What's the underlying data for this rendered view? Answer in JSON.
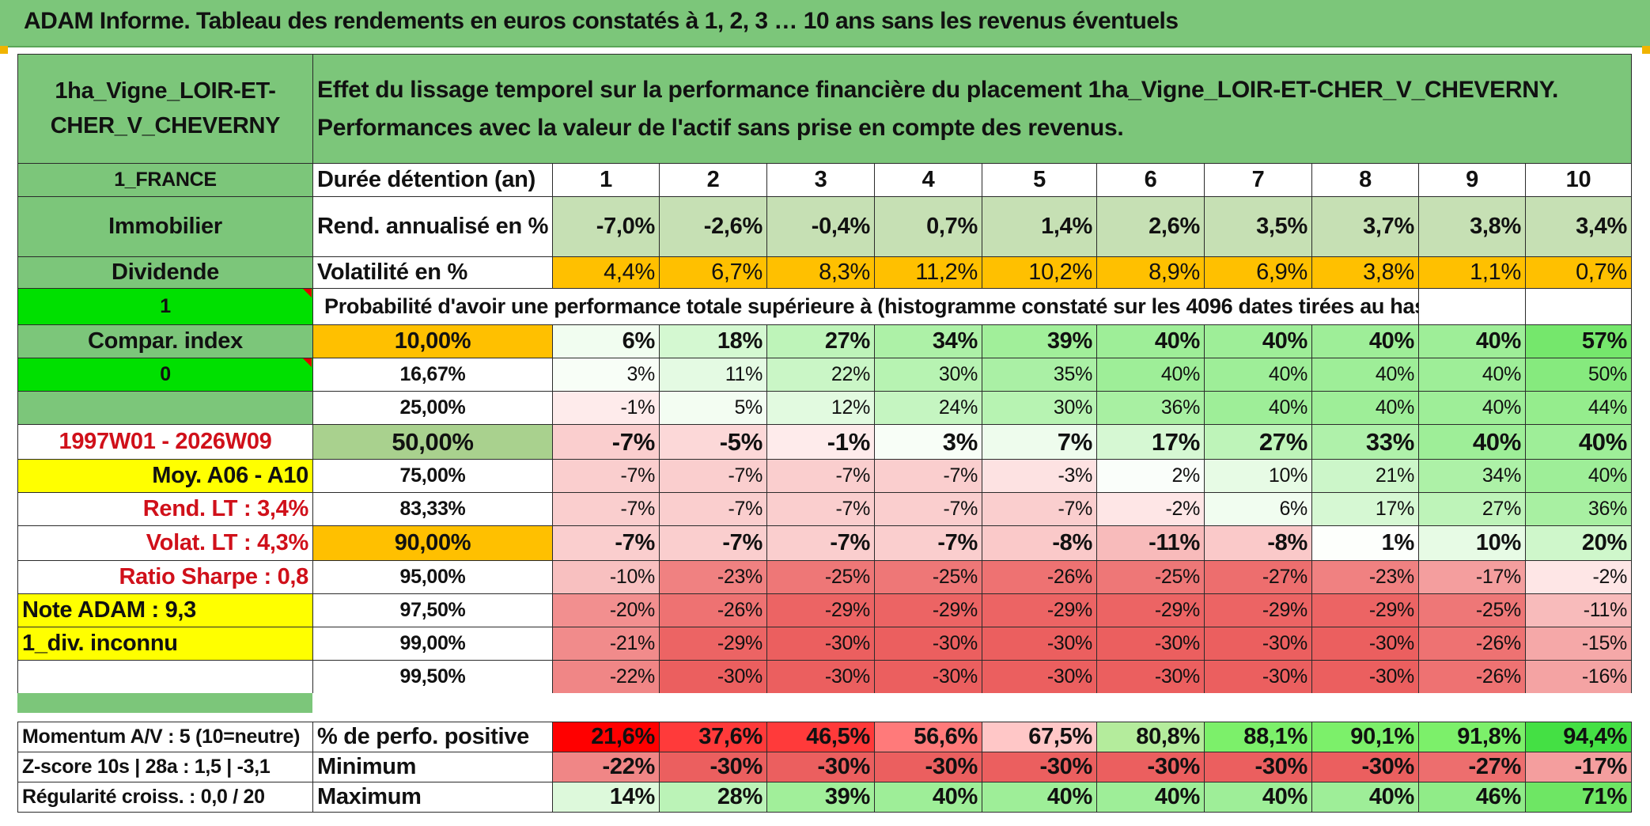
{
  "header": {
    "title": "ADAM Informe. Tableau des rendements en euros constatés à 1, 2, 3 … 10 ans sans les revenus éventuels"
  },
  "colors": {
    "header_green": "#7cc67a",
    "bright_green": "#00e000",
    "orange": "#ffc000",
    "yellow": "#ffff00",
    "red_text": "#d0101a"
  },
  "left": {
    "asset_name": "1ha_Vigne_LOIR-ET-CHER_V_CHEVERNY",
    "country": "1_FRANCE",
    "category": "Immobilier",
    "income": "Dividende",
    "flag1": "1",
    "compar_index": "Compar. index",
    "flag2": "0",
    "period": "1997W01 - 2026W09",
    "moy": "Moy. A06 - A10",
    "rend_lt": "Rend. LT :   3,4%",
    "volat_lt": "Volat. LT :   4,3%",
    "sharpe": "Ratio Sharpe :    0,8",
    "note": "Note ADAM : 9,3",
    "div": "1_div. inconnu",
    "momentum": "Momentum A/V : 5 (10=neutre)",
    "zscore": "Z-score 10s | 28a : 1,5 | -3,1",
    "regularite": "Régularité croiss. : 0,0 / 20"
  },
  "description": "Effet du lissage temporel sur la performance financière du placement 1ha_Vigne_LOIR-ET-CHER_V_CHEVERNY. Performances avec la valeur de l'actif sans prise en compte des revenus.",
  "years": {
    "label": "Durée détention (an)",
    "values": [
      "1",
      "2",
      "3",
      "4",
      "5",
      "6",
      "7",
      "8",
      "9",
      "10"
    ]
  },
  "rend": {
    "label": "Rend. annualisé en %",
    "values": [
      "-7,0%",
      "-2,6%",
      "-0,4%",
      "0,7%",
      "1,4%",
      "2,6%",
      "3,5%",
      "3,7%",
      "3,8%",
      "3,4%"
    ]
  },
  "volat": {
    "label": "Volatilité en %",
    "values": [
      "4,4%",
      "6,7%",
      "8,3%",
      "11,2%",
      "10,2%",
      "8,9%",
      "6,9%",
      "3,8%",
      "1,1%",
      "0,7%"
    ]
  },
  "probability_title": "Probabilité d'avoir une performance totale supérieure à (histogramme constaté sur les 4096 dates tirées au hasard)",
  "percentiles": [
    {
      "label": "10,00%",
      "values": [
        "6%",
        "18%",
        "27%",
        "34%",
        "39%",
        "40%",
        "40%",
        "40%",
        "40%",
        "57%"
      ]
    },
    {
      "label": "16,67%",
      "values": [
        "3%",
        "11%",
        "22%",
        "30%",
        "35%",
        "40%",
        "40%",
        "40%",
        "40%",
        "50%"
      ]
    },
    {
      "label": "25,00%",
      "values": [
        "-1%",
        "5%",
        "12%",
        "24%",
        "30%",
        "36%",
        "40%",
        "40%",
        "40%",
        "44%"
      ]
    },
    {
      "label": "50,00%",
      "values": [
        "-7%",
        "-5%",
        "-1%",
        "3%",
        "7%",
        "17%",
        "27%",
        "33%",
        "40%",
        "40%"
      ]
    },
    {
      "label": "75,00%",
      "values": [
        "-7%",
        "-7%",
        "-7%",
        "-7%",
        "-3%",
        "2%",
        "10%",
        "21%",
        "34%",
        "40%"
      ]
    },
    {
      "label": "83,33%",
      "values": [
        "-7%",
        "-7%",
        "-7%",
        "-7%",
        "-7%",
        "-2%",
        "6%",
        "17%",
        "27%",
        "36%"
      ]
    },
    {
      "label": "90,00%",
      "values": [
        "-7%",
        "-7%",
        "-7%",
        "-7%",
        "-8%",
        "-11%",
        "-8%",
        "1%",
        "10%",
        "20%"
      ]
    },
    {
      "label": "95,00%",
      "values": [
        "-10%",
        "-23%",
        "-25%",
        "-25%",
        "-26%",
        "-25%",
        "-27%",
        "-23%",
        "-17%",
        "-2%"
      ]
    },
    {
      "label": "97,50%",
      "values": [
        "-20%",
        "-26%",
        "-29%",
        "-29%",
        "-29%",
        "-29%",
        "-29%",
        "-29%",
        "-25%",
        "-11%"
      ]
    },
    {
      "label": "99,00%",
      "values": [
        "-21%",
        "-29%",
        "-30%",
        "-30%",
        "-30%",
        "-30%",
        "-30%",
        "-30%",
        "-26%",
        "-15%"
      ]
    },
    {
      "label": "99,50%",
      "values": [
        "-22%",
        "-30%",
        "-30%",
        "-30%",
        "-30%",
        "-30%",
        "-30%",
        "-30%",
        "-26%",
        "-16%"
      ]
    }
  ],
  "positive": {
    "label": "% de perfo. positive",
    "values": [
      "21,6%",
      "37,6%",
      "46,5%",
      "56,6%",
      "67,5%",
      "80,8%",
      "88,1%",
      "90,1%",
      "91,8%",
      "94,4%"
    ]
  },
  "minimum": {
    "label": "Minimum",
    "values": [
      "-22%",
      "-30%",
      "-30%",
      "-30%",
      "-30%",
      "-30%",
      "-30%",
      "-30%",
      "-27%",
      "-17%"
    ]
  },
  "maximum": {
    "label": "Maximum",
    "values": [
      "14%",
      "28%",
      "39%",
      "40%",
      "40%",
      "40%",
      "40%",
      "40%",
      "46%",
      "71%"
    ]
  }
}
